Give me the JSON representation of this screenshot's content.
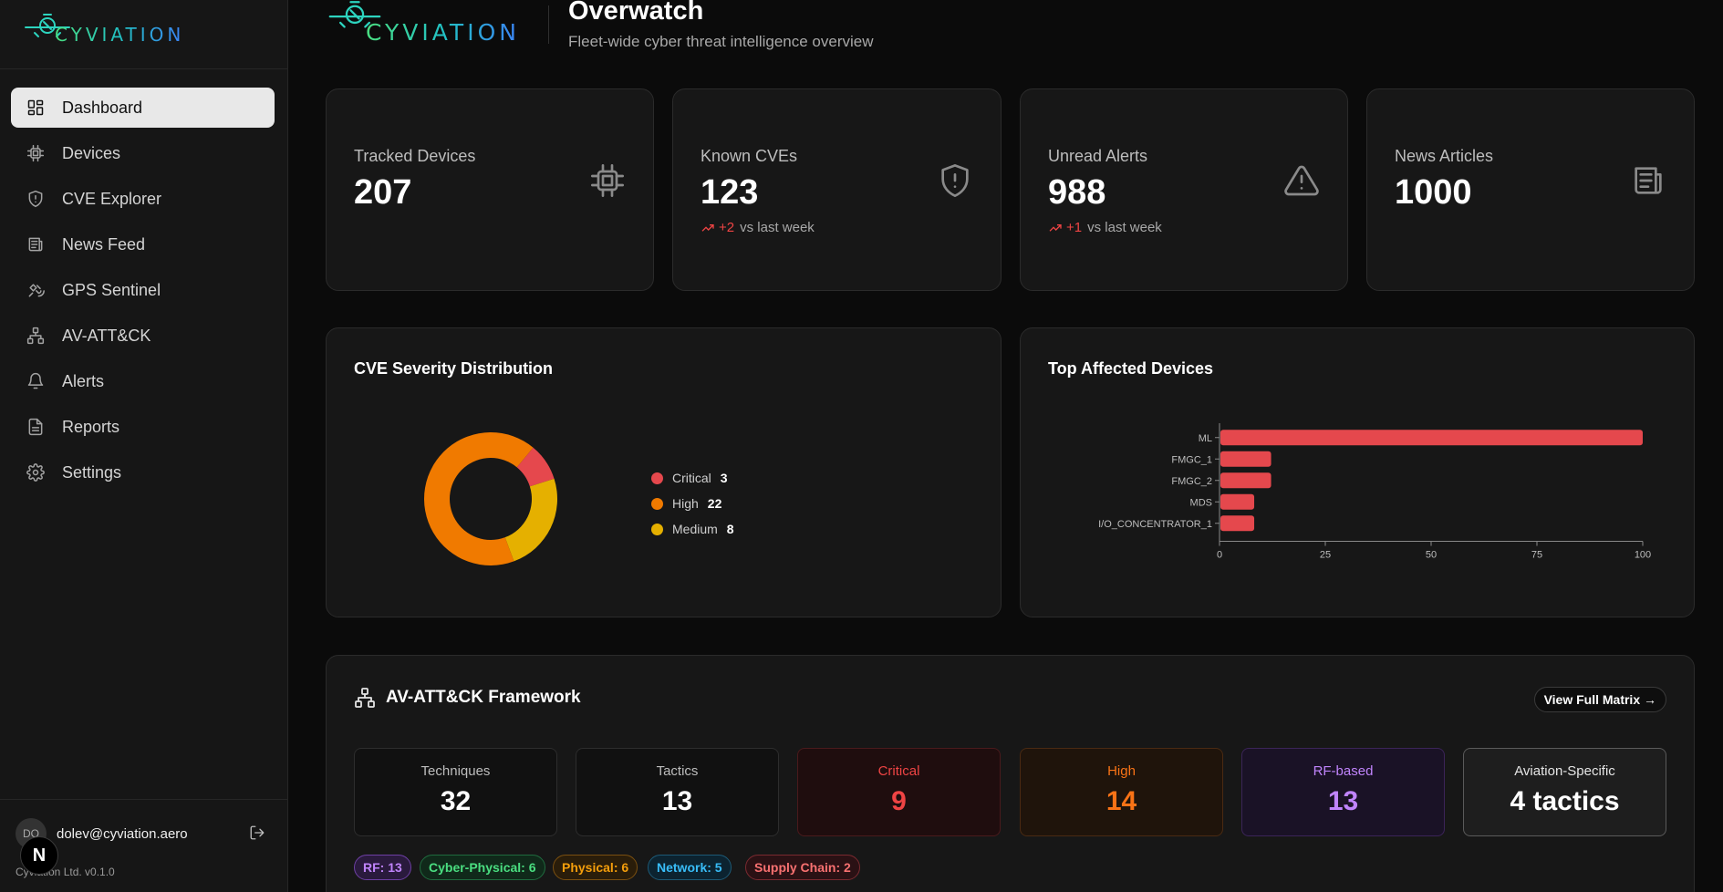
{
  "brand": {
    "logo_text": "CYVIATION"
  },
  "sidebar": {
    "items": [
      {
        "label": "Dashboard",
        "icon": "dashboard-icon",
        "active": true
      },
      {
        "label": "Devices",
        "icon": "chip-icon"
      },
      {
        "label": "CVE Explorer",
        "icon": "shield-icon"
      },
      {
        "label": "News Feed",
        "icon": "newspaper-icon"
      },
      {
        "label": "GPS Sentinel",
        "icon": "satellite-icon"
      },
      {
        "label": "AV-ATT&CK",
        "icon": "network-icon"
      },
      {
        "label": "Alerts",
        "icon": "bell-icon"
      },
      {
        "label": "Reports",
        "icon": "report-icon"
      },
      {
        "label": "Settings",
        "icon": "gear-icon"
      }
    ],
    "user": {
      "initials": "DO",
      "email": "dolev@cyviation.aero"
    },
    "version": "Cyviation Ltd. v0.1.0",
    "next_badge": "N"
  },
  "header": {
    "title": "Overwatch",
    "subtitle": "Fleet-wide cyber threat intelligence overview"
  },
  "stats": [
    {
      "label": "Tracked Devices",
      "value": "207",
      "icon": "chip-icon"
    },
    {
      "label": "Known CVEs",
      "value": "123",
      "trend_delta": "+2",
      "trend_text": "vs last week",
      "icon": "shield-alert-icon"
    },
    {
      "label": "Unread Alerts",
      "value": "988",
      "trend_delta": "+1",
      "trend_text": "vs last week",
      "icon": "warning-icon"
    },
    {
      "label": "News Articles",
      "value": "1000",
      "icon": "newspaper-icon"
    }
  ],
  "severity_panel": {
    "title": "CVE Severity Distribution"
  },
  "devices_panel": {
    "title": "Top Affected Devices"
  },
  "chart_data": [
    {
      "type": "pie",
      "title": "CVE Severity Distribution",
      "categories": [
        "Critical",
        "High",
        "Medium"
      ],
      "values": [
        3,
        22,
        8
      ],
      "colors": [
        "#e5484d",
        "#f07a00",
        "#e5b000"
      ],
      "legend": "right"
    },
    {
      "type": "bar",
      "orientation": "horizontal",
      "title": "Top Affected Devices",
      "categories": [
        "ML",
        "FMGC_1",
        "FMGC_2",
        "MDS",
        "I/O_CONCENTRATOR_1"
      ],
      "values": [
        100,
        12,
        12,
        8,
        8
      ],
      "xlim": [
        0,
        100
      ],
      "xticks": [
        "0",
        "25",
        "50",
        "75",
        "100"
      ],
      "color": "#e5484d"
    }
  ],
  "framework": {
    "title": "AV-ATT&CK Framework",
    "button": "View Full Matrix →",
    "metrics": [
      {
        "label": "Techniques",
        "value": "32"
      },
      {
        "label": "Tactics",
        "value": "13"
      },
      {
        "label": "Critical",
        "value": "9"
      },
      {
        "label": "High",
        "value": "14"
      },
      {
        "label": "RF-based",
        "value": "13"
      },
      {
        "label": "Aviation-Specific",
        "value": "4 tactics"
      }
    ],
    "tags": [
      {
        "label": "RF: 13",
        "color": "#c084fc"
      },
      {
        "label": "Cyber-Physical: 6",
        "color": "#4ade80"
      },
      {
        "label": "Physical: 6",
        "color": "#f59e0b"
      },
      {
        "label": "Network: 5",
        "color": "#38bdf8"
      },
      {
        "label": "Supply Chain: 2",
        "color": "#f87171"
      }
    ]
  }
}
